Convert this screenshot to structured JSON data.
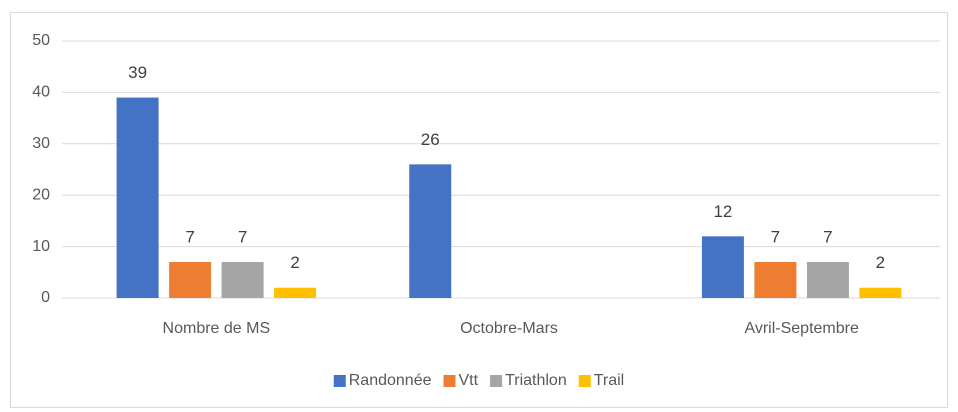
{
  "chart_data": {
    "type": "bar",
    "categories": [
      "Nombre de MS",
      "Octobre-Mars",
      "Avril-Septembre"
    ],
    "series": [
      {
        "name": "Randonnée",
        "color": "#4472c4",
        "values": [
          39,
          26,
          12
        ]
      },
      {
        "name": "Vtt",
        "color": "#ed7d31",
        "values": [
          7,
          null,
          7
        ]
      },
      {
        "name": "Triathlon",
        "color": "#a5a5a5",
        "values": [
          7,
          null,
          7
        ]
      },
      {
        "name": "Trail",
        "color": "#ffc000",
        "values": [
          2,
          null,
          2
        ]
      }
    ],
    "ylim": [
      0,
      50
    ],
    "yticks": [
      0,
      10,
      20,
      30,
      40,
      50
    ],
    "grid": true,
    "legend": "bottom"
  }
}
